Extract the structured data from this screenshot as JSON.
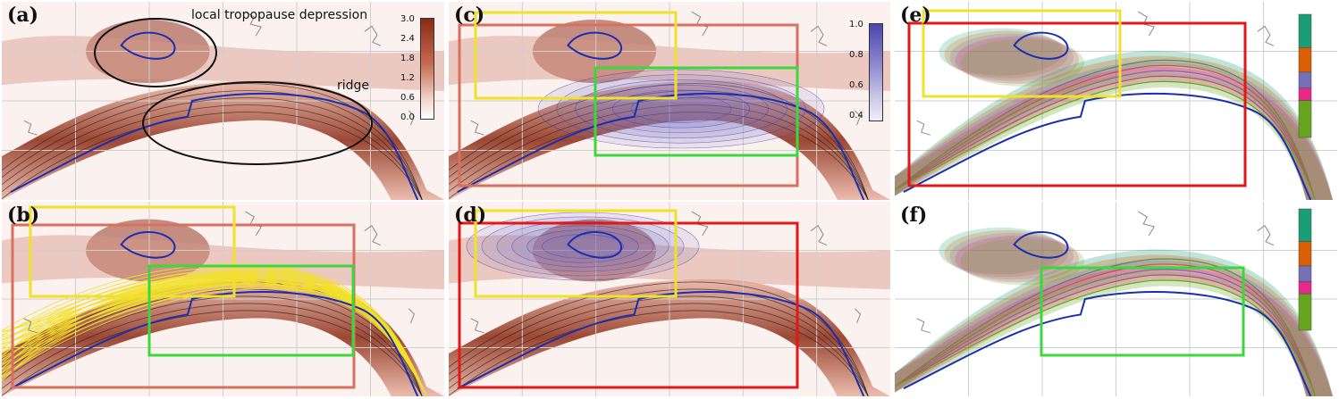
{
  "panels": {
    "a": {
      "label": "(a)"
    },
    "b": {
      "label": "(b)"
    },
    "c": {
      "label": "(c)"
    },
    "d": {
      "label": "(d)"
    },
    "e": {
      "label": "(e)"
    },
    "f": {
      "label": "(f)"
    }
  },
  "annotations": {
    "tropopause": "local tropopause depression",
    "ridge": "ridge"
  },
  "colorbar_pv": {
    "ticks": [
      "3.0",
      "2.4",
      "1.8",
      "1.2",
      "0.6",
      "0.0"
    ]
  },
  "colorbar_prob": {
    "ticks": [
      "1.0",
      "0.8",
      "0.6",
      "0.4"
    ]
  },
  "colors": {
    "pv": "#8b2a13",
    "blue": "#1a2fb0",
    "yellow": "#f2e12a",
    "green": "#3dd63d",
    "red": "#e01818",
    "cluster_colors": [
      "#1b9e77",
      "#d95f02",
      "#7570b3",
      "#e7298a",
      "#66a61e"
    ]
  }
}
